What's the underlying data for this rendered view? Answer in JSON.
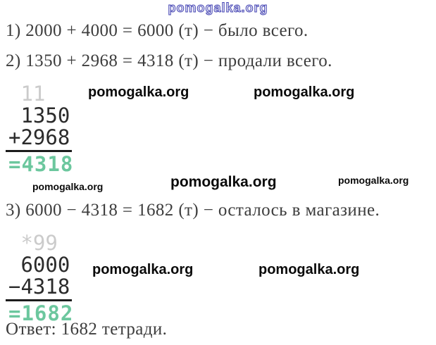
{
  "top_watermark": {
    "text": "pomogalka.org"
  },
  "watermark": {
    "text": "pomogalka.org"
  },
  "solution": {
    "step1": "1) 2000 + 4000 = 6000 (т) − было всего.",
    "step2": "2) 1350 + 2968 = 4318 (т) − продали всего.",
    "step3": "3) 6000 − 4318 = 1682 (т) − осталось в магазине.",
    "answer": "Ответ: 1682 тетради."
  },
  "addition_stack": {
    "carries": " 11",
    "addend_top": " 1350",
    "addend_bottom": "+2968",
    "result": "=4318"
  },
  "subtraction_stack": {
    "carries": " *99",
    "minuend": " 6000",
    "subtrahend": "−4318",
    "result": "=1682"
  },
  "colors": {
    "result_green": "#6cc79e",
    "carry_gray": "#cbcbcb",
    "body_text": "#3d3d3d",
    "watermark_black": "#0a0a0a",
    "outline_blue": "#4646b4"
  }
}
